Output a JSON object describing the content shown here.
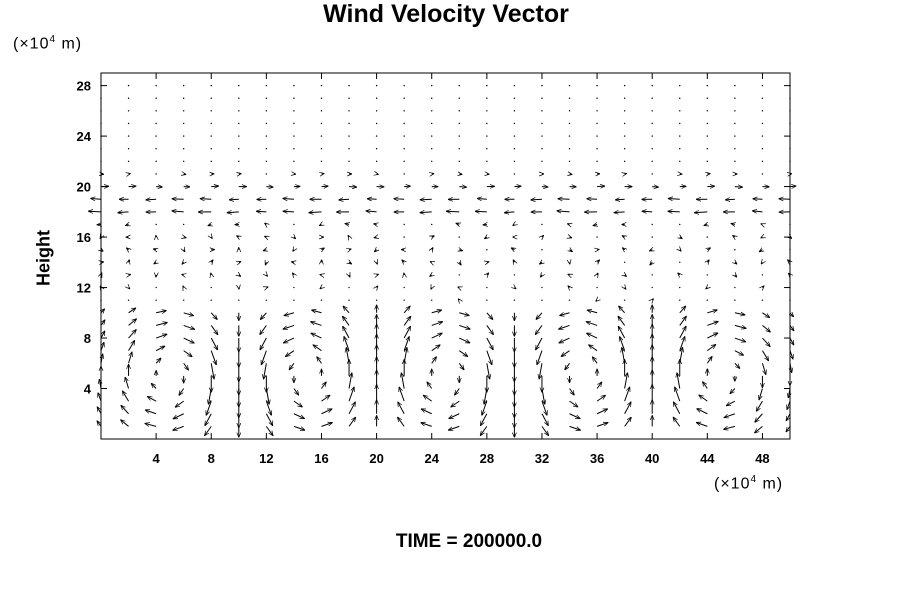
{
  "chart_data": {
    "type": "vector",
    "title": "Wind Velocity Vector",
    "xlabel": "",
    "ylabel": "Height",
    "x_unit": {
      "prefix": "(×10",
      "exponent": "4",
      "suffix": " m)"
    },
    "y_unit": {
      "prefix": "(×10",
      "exponent": "4",
      "suffix": " m)"
    },
    "annotation": "TIME = 200000.0",
    "xlim": [
      0,
      50
    ],
    "ylim": [
      0,
      29
    ],
    "x_ticks": [
      4,
      8,
      12,
      16,
      20,
      24,
      28,
      32,
      36,
      40,
      44,
      48
    ],
    "y_ticks": [
      4,
      8,
      12,
      16,
      20,
      24,
      28
    ],
    "grid": false,
    "field": {
      "x_start": 0,
      "x_step": 2,
      "x_count": 26,
      "y_start": 1,
      "y_step": 1,
      "y_count": 28,
      "cell_centers": [
        5,
        15,
        25,
        35,
        45
      ],
      "cell_directions": [
        1,
        -1,
        1,
        -1,
        1
      ],
      "cell_radius": 4.5,
      "cell_height": 10,
      "peak_speed": 1.0,
      "upper_flow_levels": [
        {
          "y": 18,
          "u": -0.35
        },
        {
          "y": 19,
          "u": -0.4
        },
        {
          "y": 20,
          "u": 0.35
        }
      ]
    }
  }
}
